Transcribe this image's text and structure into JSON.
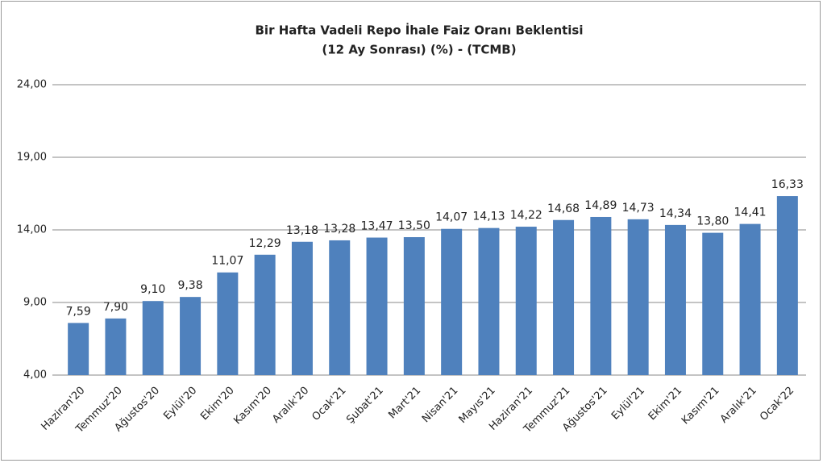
{
  "chart_data": {
    "type": "bar",
    "title": "Bir Hafta Vadeli Repo İhale Faiz Oranı Beklentisi",
    "subtitle": "(12 Ay Sonrası) (%) - (TCMB)",
    "categories": [
      "Haziran'20",
      "Temmuz'20",
      "Ağustos'20",
      "Eylül'20",
      "Ekim'20",
      "Kasım'20",
      "Aralık'20",
      "Ocak'21",
      "Şubat'21",
      "Mart'21",
      "Nisan'21",
      "Mayıs'21",
      "Haziran'21",
      "Temmuz'21",
      "Ağustos'21",
      "Eylül'21",
      "Ekim'21",
      "Kasım'21",
      "Aralık'21",
      "Ocak'22"
    ],
    "values": [
      7.59,
      7.9,
      9.1,
      9.38,
      11.07,
      12.29,
      13.18,
      13.28,
      13.47,
      13.5,
      14.07,
      14.13,
      14.22,
      14.68,
      14.89,
      14.73,
      14.34,
      13.8,
      14.41,
      16.33
    ],
    "value_labels": [
      "7,59",
      "7,90",
      "9,10",
      "9,38",
      "11,07",
      "12,29",
      "13,18",
      "13,28",
      "13,47",
      "13,50",
      "14,07",
      "14,13",
      "14,22",
      "14,68",
      "14,89",
      "14,73",
      "14,34",
      "13,80",
      "14,41",
      "16,33"
    ],
    "color": "#4f81bd",
    "ylim": [
      4,
      24
    ],
    "yticks": [
      {
        "value": 4,
        "label": "4,00"
      },
      {
        "value": 9,
        "label": "9,00"
      },
      {
        "value": 14,
        "label": "14,00"
      },
      {
        "value": 19,
        "label": "19,00"
      },
      {
        "value": 24,
        "label": "24,00"
      }
    ],
    "grid": true
  }
}
